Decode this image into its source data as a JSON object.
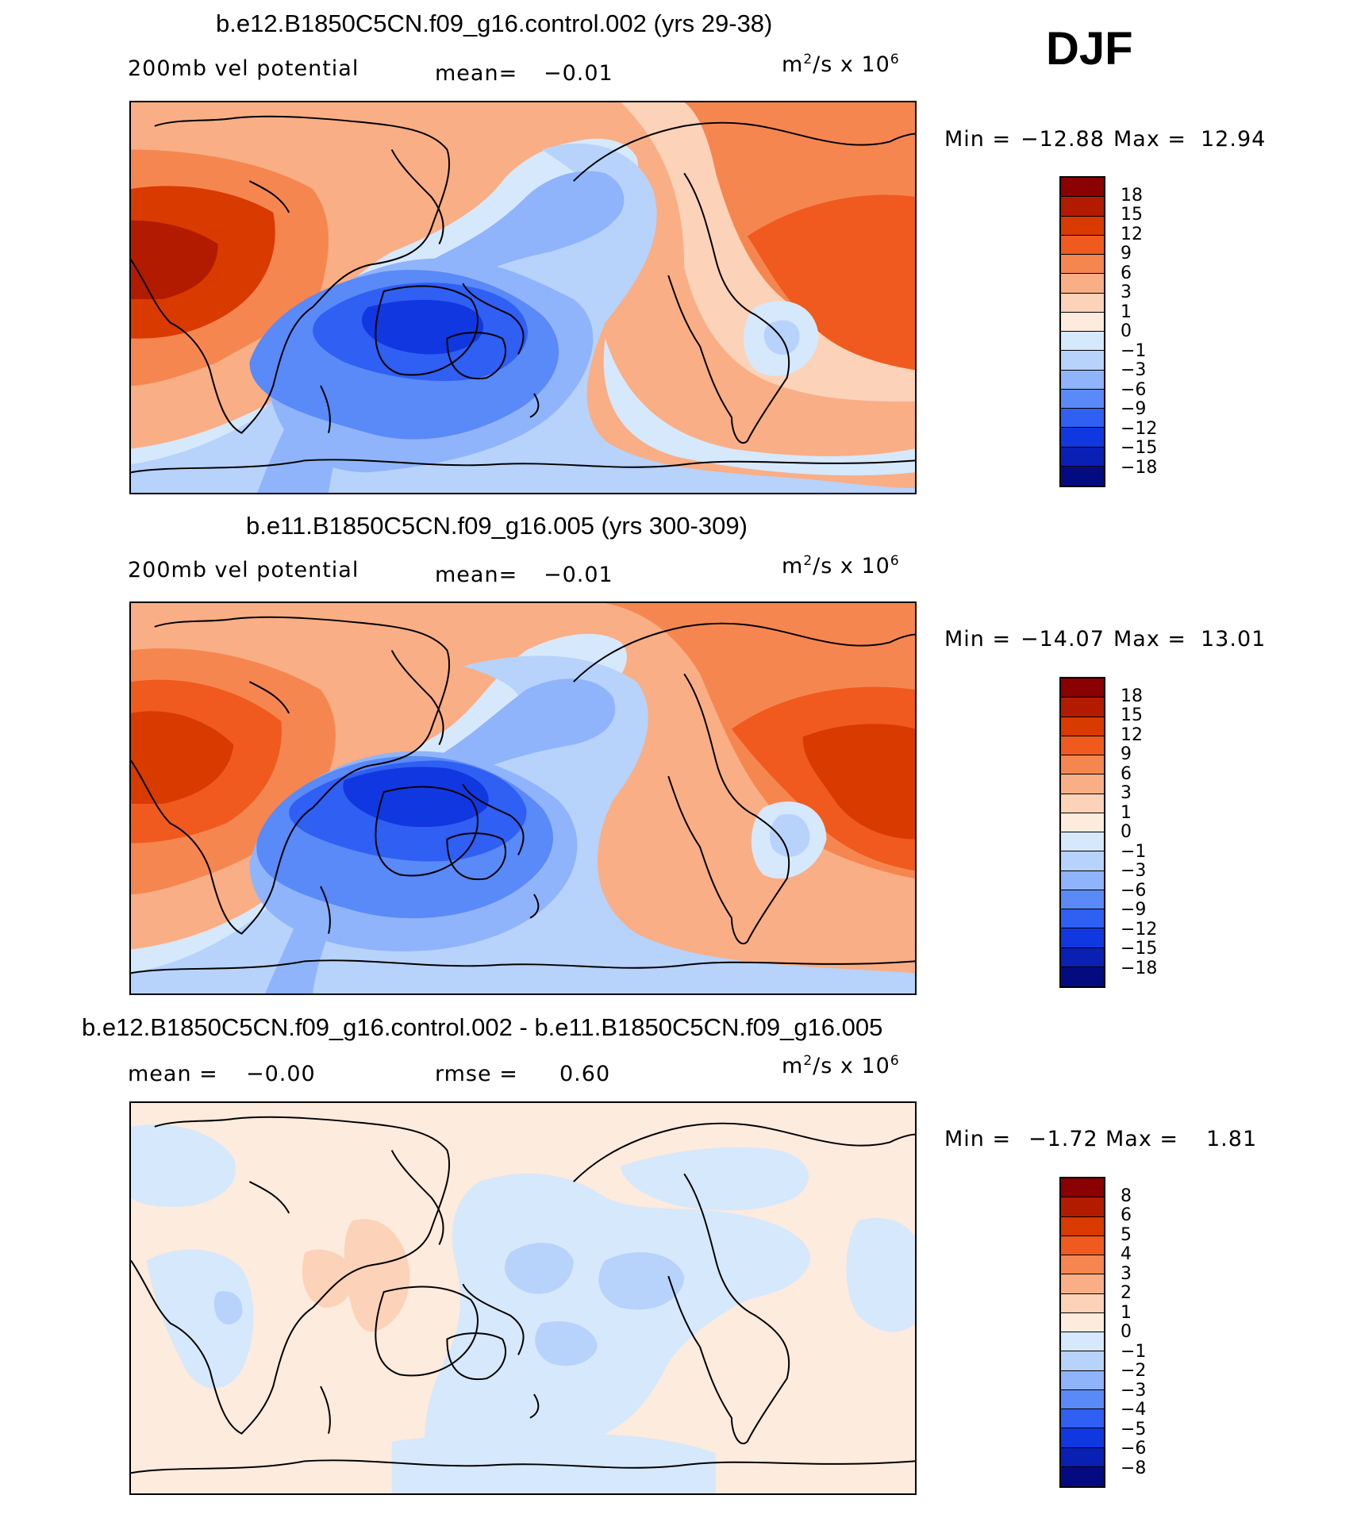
{
  "season": "DJF",
  "units": {
    "base": "m",
    "exp": "2",
    "rest": "/s  x  10",
    "scale_exp": "6"
  },
  "panels": [
    {
      "title": "b.e12.B1850C5CN.f09_g16.control.002 (yrs 29-38)",
      "left_label": "200mb  vel  potential",
      "stat_label": "mean=",
      "stat_value": "−0.01",
      "min_label": "Min  =",
      "min_value": "−12.88",
      "max_label": "Max  =",
      "max_value": "12.94"
    },
    {
      "title": "b.e11.B1850C5CN.f09_g16.005 (yrs 300-309)",
      "left_label": "200mb  vel  potential",
      "stat_label": "mean=",
      "stat_value": "−0.01",
      "min_label": "Min  =",
      "min_value": "−14.07",
      "max_label": "Max  =",
      "max_value": "13.01"
    },
    {
      "title": "b.e12.B1850C5CN.f09_g16.control.002 - b.e11.B1850C5CN.f09_g16.005",
      "mean_label": "mean  =",
      "mean_value": "−0.00",
      "rmse_label": "rmse  =",
      "rmse_value": "0.60",
      "min_label": "Min  =",
      "min_value": "−1.72",
      "max_label": "Max  =",
      "max_value": "1.81"
    }
  ],
  "chart_data": [
    {
      "type": "heatmap",
      "title": "b.e12.B1850C5CN.f09_g16.control.002 (yrs 29-38)",
      "variable": "200mb vel potential",
      "season": "DJF",
      "units": "m2/s x 10^6",
      "mean": -0.01,
      "min": -12.88,
      "max": 12.94,
      "contour_levels": [
        18,
        15,
        12,
        9,
        6,
        3,
        1,
        0,
        -1,
        -3,
        -6,
        -9,
        -12,
        -15,
        -18
      ]
    },
    {
      "type": "heatmap",
      "title": "b.e11.B1850C5CN.f09_g16.005 (yrs 300-309)",
      "variable": "200mb vel potential",
      "season": "DJF",
      "units": "m2/s x 10^6",
      "mean": -0.01,
      "min": -14.07,
      "max": 13.01,
      "contour_levels": [
        18,
        15,
        12,
        9,
        6,
        3,
        1,
        0,
        -1,
        -3,
        -6,
        -9,
        -12,
        -15,
        -18
      ]
    },
    {
      "type": "heatmap",
      "title": "b.e12.B1850C5CN.f09_g16.control.002 - b.e11.B1850C5CN.f09_g16.005",
      "season": "DJF",
      "units": "m2/s x 10^6",
      "mean": -0.0,
      "rmse": 0.6,
      "min": -1.72,
      "max": 1.81,
      "contour_levels": [
        8,
        6,
        5,
        4,
        3,
        2,
        1,
        0,
        -1,
        -2,
        -3,
        -4,
        -5,
        -6,
        -8
      ]
    }
  ],
  "colorbar": {
    "colors": [
      "#8b0000",
      "#b31b00",
      "#d93a00",
      "#f05a1e",
      "#f68650",
      "#f9ae85",
      "#fcd2b8",
      "#fdebdd",
      "#d6e8fb",
      "#b7d2fb",
      "#8fb4fb",
      "#5a89f8",
      "#2f5ff3",
      "#1138e0",
      "#0a1fb3",
      "#040b80"
    ]
  }
}
